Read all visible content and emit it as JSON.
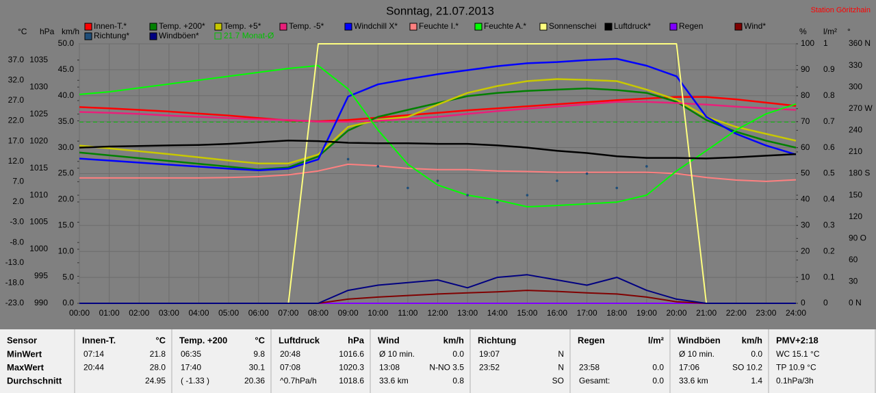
{
  "chart_data": {
    "type": "line",
    "title": "Sonntag, 21.07.2013",
    "station": "Station Göritzhain",
    "x": [
      0,
      1,
      2,
      3,
      4,
      5,
      6,
      7,
      8,
      9,
      10,
      11,
      12,
      13,
      14,
      15,
      16,
      17,
      18,
      19,
      20,
      21,
      22,
      23,
      24
    ],
    "xlim": [
      0,
      24
    ],
    "xticks": [
      {
        "value": 0,
        "label": "00:00"
      },
      {
        "value": 1,
        "label": "01:00"
      },
      {
        "value": 2,
        "label": "02:00"
      },
      {
        "value": 3,
        "label": "03:00"
      },
      {
        "value": 4,
        "label": "04:00"
      },
      {
        "value": 5,
        "label": "05:00"
      },
      {
        "value": 6,
        "label": "06:00"
      },
      {
        "value": 7,
        "label": "07:00"
      },
      {
        "value": 8,
        "label": "08:00"
      },
      {
        "value": 9,
        "label": "09:00"
      },
      {
        "value": 10,
        "label": "10:00"
      },
      {
        "value": 11,
        "label": "11:00"
      },
      {
        "value": 12,
        "label": "12:00"
      },
      {
        "value": 13,
        "label": "13:00"
      },
      {
        "value": 14,
        "label": "14:00"
      },
      {
        "value": 15,
        "label": "15:00"
      },
      {
        "value": 16,
        "label": "16:00"
      },
      {
        "value": 17,
        "label": "17:00"
      },
      {
        "value": 18,
        "label": "18:00"
      },
      {
        "value": 19,
        "label": "19:00"
      },
      {
        "value": 20,
        "label": "20:00"
      },
      {
        "value": 21,
        "label": "21:00"
      },
      {
        "value": 22,
        "label": "22:00"
      },
      {
        "value": 23,
        "label": "23:00"
      },
      {
        "value": 24,
        "label": "24:00"
      }
    ],
    "grid": true,
    "axes": {
      "temp": {
        "label": "°C",
        "lim": [
          -23,
          41
        ],
        "ticks": [
          {
            "value": 37,
            "label": "37.0"
          },
          {
            "value": 32,
            "label": "32.0"
          },
          {
            "value": 27,
            "label": "27.0"
          },
          {
            "value": 22,
            "label": "22.0"
          },
          {
            "value": 17,
            "label": "17.0"
          },
          {
            "value": 12,
            "label": "12.0"
          },
          {
            "value": 7,
            "label": "7.0"
          },
          {
            "value": 2,
            "label": "2.0"
          },
          {
            "value": -3,
            "label": "-3.0"
          },
          {
            "value": -8,
            "label": "-8.0"
          },
          {
            "value": -13,
            "label": "-13.0"
          },
          {
            "value": -18,
            "label": "-18.0"
          },
          {
            "value": -23,
            "label": "-23.0"
          }
        ]
      },
      "pressure": {
        "label": "hPa",
        "lim": [
          990,
          1038
        ],
        "ticks": [
          1035,
          1030,
          1025,
          1020,
          1015,
          1010,
          1005,
          1000,
          995,
          990
        ]
      },
      "wind": {
        "label": "km/h",
        "lim": [
          0,
          50
        ],
        "ticks": [
          {
            "value": 50,
            "label": "50.0"
          },
          {
            "value": 45,
            "label": "45.0"
          },
          {
            "value": 40,
            "label": "40.0"
          },
          {
            "value": 35,
            "label": "35.0"
          },
          {
            "value": 30,
            "label": "30.0"
          },
          {
            "value": 25,
            "label": "25.0"
          },
          {
            "value": 20,
            "label": "20.0"
          },
          {
            "value": 15,
            "label": "15.0"
          },
          {
            "value": 10,
            "label": "10.0"
          },
          {
            "value": 5,
            "label": "5.0"
          },
          {
            "value": 0,
            "label": "0.0"
          }
        ]
      },
      "percent": {
        "label": "%",
        "lim": [
          0,
          100
        ],
        "ticks": [
          100,
          90,
          80,
          70,
          60,
          50,
          40,
          30,
          20,
          10,
          0
        ]
      },
      "rain": {
        "label": "l/m²",
        "lim": [
          0,
          1
        ],
        "ticks": [
          1,
          0.9,
          0.8,
          0.7,
          0.6,
          0.5,
          0.4,
          0.3,
          0.2,
          0.1,
          0
        ]
      },
      "direction": {
        "label": "°",
        "lim": [
          0,
          360
        ],
        "ticks": [
          {
            "value": 360,
            "label": "360 N"
          },
          330,
          300,
          {
            "value": 270,
            "label": "270 W"
          },
          240,
          210,
          {
            "value": 180,
            "label": "180 S"
          },
          150,
          120,
          {
            "value": 90,
            "label": "90 O"
          },
          60,
          30,
          {
            "value": 0,
            "label": "0 N"
          }
        ]
      }
    },
    "series": [
      {
        "name": "Innen-T.*",
        "color": "#ff0000",
        "axis": "temp",
        "values": [
          25.4,
          25.1,
          24.7,
          24.3,
          23.8,
          23.3,
          22.7,
          22.1,
          21.9,
          22.2,
          22.8,
          23.4,
          24.0,
          24.6,
          25.1,
          25.6,
          26.1,
          26.6,
          27.1,
          27.5,
          27.9,
          27.9,
          27.3,
          26.5,
          25.7
        ]
      },
      {
        "name": "Temp. +200*",
        "color": "#008000",
        "axis": "temp",
        "values": [
          14.2,
          13.5,
          12.8,
          12.1,
          11.4,
          10.7,
          10.0,
          10.5,
          13.2,
          19.6,
          23.0,
          24.7,
          26.4,
          28.1,
          28.9,
          29.4,
          29.7,
          30.0,
          29.6,
          28.9,
          26.7,
          22.2,
          19.3,
          17.1,
          15.4
        ]
      },
      {
        "name": "Temp. +5*",
        "color": "#c8c800",
        "axis": "temp",
        "values": [
          15.9,
          15.2,
          14.5,
          13.8,
          13.0,
          12.2,
          11.5,
          11.5,
          13.7,
          20.5,
          22.2,
          23.0,
          26.0,
          28.9,
          30.6,
          31.8,
          32.3,
          32.1,
          31.8,
          29.7,
          27.2,
          23.0,
          20.5,
          18.8,
          17.1
        ]
      },
      {
        "name": "Temp. -5*",
        "color": "#e8207a",
        "axis": "temp",
        "values": [
          24.2,
          24.0,
          23.7,
          23.3,
          23.0,
          22.7,
          22.4,
          22.2,
          21.8,
          21.8,
          22.0,
          22.5,
          23.0,
          23.7,
          24.4,
          25.0,
          25.5,
          26.1,
          26.7,
          26.7,
          26.4,
          26.0,
          25.5,
          25.1,
          24.7
        ]
      },
      {
        "name": "Windchill X*",
        "color": "#0000ff",
        "axis": "temp",
        "values": [
          12.7,
          12.2,
          11.7,
          11.2,
          10.7,
          10.2,
          9.8,
          10.2,
          12.5,
          28.0,
          31.0,
          32.3,
          33.5,
          34.5,
          35.5,
          36.2,
          36.5,
          37.0,
          37.3,
          35.6,
          33.0,
          23.0,
          18.8,
          15.9,
          13.7
        ]
      },
      {
        "name": "Feuchte I.*",
        "color": "#ff8080",
        "axis": "percent",
        "values": [
          48.3,
          48.3,
          48.3,
          48.3,
          48.3,
          48.5,
          48.8,
          49.5,
          51.0,
          53.6,
          53.0,
          52.0,
          51.5,
          51.5,
          51.0,
          50.8,
          50.5,
          50.5,
          50.5,
          50.5,
          50.0,
          48.5,
          47.5,
          47.0,
          47.6
        ]
      },
      {
        "name": "Feuchte A.*",
        "color": "#00ff00",
        "axis": "percent",
        "values": [
          80.5,
          81.5,
          83.0,
          84.5,
          86.0,
          87.5,
          89.0,
          90.5,
          91.6,
          82.6,
          66.8,
          53.6,
          45.6,
          41.7,
          39.8,
          37.2,
          37.7,
          38.3,
          39.0,
          41.7,
          51.0,
          58.8,
          66.8,
          73.0,
          76.8
        ]
      },
      {
        "name": "Sonnenschei",
        "color": "#ffff80",
        "axis": "percent",
        "values": [
          0,
          0,
          0,
          0,
          0,
          0,
          0,
          0,
          100,
          100,
          100,
          100,
          100,
          100,
          100,
          100,
          100,
          100,
          100,
          100,
          100,
          0,
          0,
          0,
          0
        ]
      },
      {
        "name": "Luftdruck*",
        "color": "#000000",
        "axis": "pressure",
        "values": [
          1018.8,
          1019.0,
          1019.1,
          1019.2,
          1019.3,
          1019.5,
          1019.8,
          1020.1,
          1020.0,
          1019.7,
          1019.6,
          1019.6,
          1019.5,
          1019.5,
          1019.2,
          1018.8,
          1018.2,
          1017.8,
          1017.2,
          1016.9,
          1016.9,
          1016.8,
          1017.0,
          1017.3,
          1017.6
        ]
      },
      {
        "name": "Regen",
        "color": "#8000ff",
        "axis": "rain",
        "values": [
          0,
          0,
          0,
          0,
          0,
          0,
          0,
          0,
          0,
          0,
          0,
          0,
          0,
          0,
          0,
          0,
          0,
          0,
          0,
          0,
          0,
          0,
          0,
          0,
          0
        ]
      },
      {
        "name": "Wind*",
        "color": "#800000",
        "axis": "wind",
        "values": [
          0,
          0,
          0,
          0,
          0,
          0,
          0,
          0,
          0,
          0.8,
          1.2,
          1.5,
          1.8,
          2.0,
          2.2,
          2.5,
          2.3,
          2.0,
          1.8,
          1.2,
          0.3,
          0,
          0,
          0,
          0
        ]
      },
      {
        "name": "Richtung*",
        "color": "#1f4e79",
        "axis": "direction",
        "type": "scatter",
        "values": [
          null,
          null,
          null,
          null,
          null,
          null,
          null,
          null,
          null,
          200,
          190,
          160,
          170,
          150,
          140,
          150,
          170,
          180,
          160,
          190,
          null,
          null,
          null,
          null,
          null
        ]
      },
      {
        "name": "Windböen*",
        "color": "#000080",
        "axis": "wind",
        "values": [
          0,
          0,
          0,
          0,
          0,
          0,
          0,
          0,
          0,
          2.5,
          3.5,
          4.0,
          4.5,
          3.0,
          5.0,
          5.5,
          4.5,
          3.5,
          5.0,
          2.5,
          0.8,
          0,
          0,
          0,
          0
        ]
      }
    ],
    "average": {
      "label": "21.7 Monat-Ø",
      "value": 21.7,
      "axis": "temp",
      "color": "#00c000"
    }
  },
  "table": {
    "columns": [
      {
        "title": "Sensor",
        "rows": [
          [
            "MinWert"
          ],
          [
            "MaxWert"
          ],
          [
            "Durchschnitt"
          ]
        ]
      },
      {
        "title": "Innen-T.",
        "unit": "°C",
        "rows": [
          [
            "07:14",
            "21.8"
          ],
          [
            "20:44",
            "28.0"
          ],
          [
            null,
            "24.95"
          ]
        ]
      },
      {
        "title": "Temp. +200",
        "unit": "°C",
        "rows": [
          [
            "06:35",
            "9.8"
          ],
          [
            "17:40",
            "30.1"
          ],
          [
            "( -1.33 )",
            "20.36"
          ]
        ]
      },
      {
        "title": "Luftdruck",
        "unit": "hPa",
        "rows": [
          [
            "20:48",
            "1016.6"
          ],
          [
            "07:08",
            "1020.3"
          ],
          [
            "^0.7hPa/h",
            "1018.6"
          ]
        ]
      },
      {
        "title": "Wind",
        "unit": "km/h",
        "rows": [
          [
            "Ø 10 min.",
            "0.0"
          ],
          [
            "13:08",
            "N-NO 3.5"
          ],
          [
            "33.6 km",
            "0.8"
          ]
        ]
      },
      {
        "title": "Richtung",
        "rows": [
          [
            "19:07",
            "N"
          ],
          [
            "23:52",
            "N"
          ],
          [
            null,
            "SO"
          ]
        ]
      },
      {
        "title": "Regen",
        "unit": "l/m²",
        "rows": [
          [
            null,
            null
          ],
          [
            "23:58",
            "0.0"
          ],
          [
            "Gesamt:",
            "0.0"
          ]
        ]
      },
      {
        "title": "Windböen",
        "unit": "km/h",
        "rows": [
          [
            "Ø 10 min.",
            "0.0"
          ],
          [
            "17:06",
            "SO 10.2"
          ],
          [
            "33.6 km",
            "1.4"
          ]
        ]
      },
      {
        "title": "PMV+2:18",
        "rows": [
          [
            "WC 15.1 °C"
          ],
          [
            "TP 10.9 °C"
          ],
          [
            "0.1hPa/3h"
          ]
        ]
      }
    ]
  }
}
